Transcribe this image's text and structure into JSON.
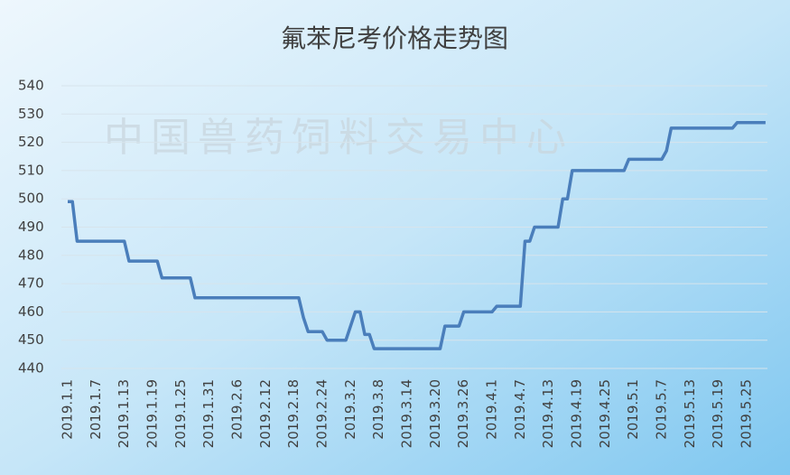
{
  "chart_data": {
    "type": "line",
    "title": "氟苯尼考价格走势图",
    "watermark": "中国兽药饲料交易中心",
    "categories": [
      "2019.1.1",
      null,
      null,
      null,
      null,
      null,
      "2019.1.7",
      null,
      null,
      null,
      null,
      null,
      "2019.1.13",
      null,
      null,
      null,
      null,
      null,
      "2019.1.19",
      null,
      null,
      null,
      null,
      null,
      "2019.1.25",
      null,
      null,
      null,
      null,
      null,
      "2019.1.31",
      null,
      null,
      null,
      null,
      null,
      "2019.2.6",
      null,
      null,
      null,
      null,
      null,
      "2019.2.12",
      null,
      null,
      null,
      null,
      null,
      "2019.2.18",
      null,
      null,
      null,
      null,
      null,
      "2019.2.24",
      null,
      null,
      null,
      null,
      null,
      "2019.3.2",
      null,
      null,
      null,
      null,
      null,
      "2019.3.8",
      null,
      null,
      null,
      null,
      null,
      "2019.3.14",
      null,
      null,
      null,
      null,
      null,
      "2019.3.20",
      null,
      null,
      null,
      null,
      null,
      "2019.3.26",
      null,
      null,
      null,
      null,
      null,
      "2019.4.1",
      null,
      null,
      null,
      null,
      null,
      "2019.4.7",
      null,
      null,
      null,
      null,
      null,
      "2019.4.13",
      null,
      null,
      null,
      null,
      null,
      "2019.4.19",
      null,
      null,
      null,
      null,
      null,
      "2019.4.25",
      null,
      null,
      null,
      null,
      null,
      "2019.5.1",
      null,
      null,
      null,
      null,
      null,
      "2019.5.7",
      null,
      null,
      null,
      null,
      null,
      "2019.5.13",
      null,
      null,
      null,
      null,
      null,
      "2019.5.19",
      null,
      null,
      null,
      null,
      null,
      "2019.5.25",
      null,
      null,
      null,
      null
    ],
    "values": [
      499,
      499,
      485,
      485,
      485,
      485,
      485,
      485,
      485,
      485,
      485,
      485,
      485,
      478,
      478,
      478,
      478,
      478,
      478,
      478,
      472,
      472,
      472,
      472,
      472,
      472,
      472,
      465,
      465,
      465,
      465,
      465,
      465,
      465,
      465,
      465,
      465,
      465,
      465,
      465,
      465,
      465,
      465,
      465,
      465,
      465,
      465,
      465,
      465,
      465,
      458,
      453,
      453,
      453,
      453,
      450,
      450,
      450,
      450,
      450,
      455,
      460,
      460,
      452,
      452,
      447,
      447,
      447,
      447,
      447,
      447,
      447,
      447,
      447,
      447,
      447,
      447,
      447,
      447,
      447,
      455,
      455,
      455,
      455,
      460,
      460,
      460,
      460,
      460,
      460,
      460,
      462,
      462,
      462,
      462,
      462,
      462,
      485,
      485,
      490,
      490,
      490,
      490,
      490,
      490,
      500,
      500,
      510,
      510,
      510,
      510,
      510,
      510,
      510,
      510,
      510,
      510,
      510,
      510,
      514,
      514,
      514,
      514,
      514,
      514,
      514,
      514,
      517,
      525,
      525,
      525,
      525,
      525,
      525,
      525,
      525,
      525,
      525,
      525,
      525,
      525,
      525,
      527,
      527,
      527,
      527,
      527,
      527,
      527
    ],
    "color": "#4a7ebb",
    "ylim": [
      440,
      540
    ],
    "yticks": [
      440,
      450,
      460,
      470,
      480,
      490,
      500,
      510,
      520,
      530,
      540
    ],
    "grid": true
  }
}
